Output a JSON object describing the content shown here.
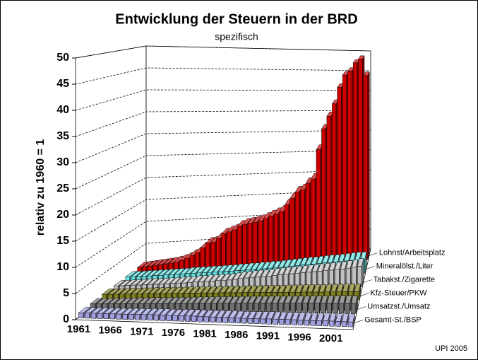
{
  "chart_data": {
    "type": "bar3d",
    "title": "Entwicklung der Steuern in der BRD",
    "subtitle": "spezifisch",
    "y_label": "relativ zu 1960 = 1",
    "footer": "UPI 2005",
    "categories": [
      "1961",
      null,
      null,
      null,
      null,
      "1966",
      null,
      null,
      null,
      null,
      "1971",
      null,
      null,
      null,
      null,
      "1976",
      null,
      null,
      null,
      null,
      "1981",
      null,
      null,
      null,
      null,
      "1986",
      null,
      null,
      null,
      null,
      "1991",
      null,
      null,
      null,
      null,
      "1996",
      null,
      null,
      null,
      null,
      "2001",
      null,
      null,
      null
    ],
    "ylim": [
      0,
      50
    ],
    "yticks": [
      0,
      5,
      10,
      15,
      20,
      25,
      30,
      35,
      40,
      45,
      50
    ],
    "grid": true,
    "series": [
      {
        "name": "Lohnst/Arbeitsplatz",
        "color": "#cc0000",
        "values": [
          1.1,
          1.2,
          1.3,
          1.4,
          1.5,
          1.6,
          1.7,
          1.9,
          2.2,
          2.6,
          3.2,
          3.8,
          4.8,
          5.8,
          6.0,
          6.8,
          7.8,
          8.2,
          8.6,
          9.4,
          9.8,
          10.0,
          10.2,
          10.5,
          11.0,
          11.5,
          12.0,
          12.5,
          14.0,
          15.5,
          17.0,
          17.5,
          19.0,
          20.0,
          27.0,
          32.0,
          35.0,
          38.0,
          42.0,
          45.0,
          46.0,
          48.0,
          49.0,
          45.0
        ]
      },
      {
        "name": "Mineralölst./Liter",
        "color": "#66e0e0",
        "values": [
          1.0,
          1.0,
          1.0,
          1.05,
          1.05,
          1.1,
          1.1,
          1.15,
          1.15,
          1.2,
          1.2,
          1.3,
          1.3,
          1.35,
          1.35,
          1.4,
          1.4,
          1.45,
          1.5,
          1.5,
          1.6,
          1.6,
          1.7,
          1.7,
          1.8,
          1.8,
          1.9,
          1.9,
          2.0,
          2.1,
          2.2,
          2.3,
          2.4,
          2.5,
          2.5,
          2.6,
          2.7,
          2.8,
          2.8,
          2.9,
          3.0,
          3.1,
          3.2,
          3.2
        ]
      },
      {
        "name": "Tabakst./Zigarette",
        "color": "#c0c0c0",
        "values": [
          1.0,
          1.0,
          1.05,
          1.1,
          1.1,
          1.15,
          1.2,
          1.2,
          1.25,
          1.3,
          1.35,
          1.4,
          1.4,
          1.5,
          1.6,
          1.6,
          1.7,
          1.7,
          1.8,
          1.8,
          1.9,
          2.0,
          2.2,
          2.3,
          2.4,
          2.5,
          2.5,
          2.6,
          2.8,
          2.9,
          3.0,
          3.1,
          3.2,
          3.3,
          3.4,
          3.5,
          3.6,
          3.7,
          3.8,
          3.9,
          4.0,
          4.2,
          4.4,
          4.6
        ]
      },
      {
        "name": "Kfz-Steuer/PKW",
        "color": "#808020",
        "values": [
          1.1,
          1.1,
          1.15,
          1.15,
          1.2,
          1.2,
          1.25,
          1.25,
          1.3,
          1.3,
          1.3,
          1.35,
          1.35,
          1.35,
          1.4,
          1.4,
          1.4,
          1.45,
          1.45,
          1.45,
          1.5,
          1.5,
          1.5,
          1.5,
          1.55,
          1.55,
          1.55,
          1.6,
          1.6,
          1.6,
          1.6,
          1.65,
          1.65,
          1.65,
          1.7,
          1.7,
          1.7,
          1.7,
          1.75,
          1.75,
          1.75,
          1.8,
          1.8,
          1.8
        ]
      },
      {
        "name": "Umsatzst./Umsatz",
        "color": "#707070",
        "values": [
          1.0,
          1.0,
          1.05,
          1.1,
          1.1,
          1.15,
          1.15,
          1.2,
          1.2,
          1.25,
          1.3,
          1.3,
          1.35,
          1.35,
          1.4,
          1.4,
          1.45,
          1.5,
          1.5,
          1.55,
          1.6,
          1.6,
          1.65,
          1.65,
          1.7,
          1.7,
          1.75,
          1.75,
          1.8,
          1.8,
          1.85,
          1.85,
          1.9,
          1.9,
          1.95,
          1.95,
          2.0,
          2.0,
          2.0,
          2.05,
          2.05,
          2.1,
          2.1,
          2.1
        ]
      },
      {
        "name": "Gesamt-St./BSP",
        "color": "#a0a0e0",
        "values": [
          1.0,
          1.0,
          1.0,
          1.0,
          1.0,
          1.0,
          1.0,
          1.0,
          1.05,
          1.05,
          1.05,
          1.1,
          1.1,
          1.1,
          1.05,
          1.05,
          1.1,
          1.1,
          1.1,
          1.1,
          1.05,
          1.05,
          1.05,
          1.05,
          1.05,
          1.0,
          1.0,
          1.0,
          1.0,
          1.0,
          1.05,
          1.05,
          1.05,
          1.05,
          1.05,
          1.05,
          1.0,
          1.0,
          1.0,
          1.05,
          1.05,
          1.0,
          1.0,
          1.0
        ]
      }
    ]
  }
}
